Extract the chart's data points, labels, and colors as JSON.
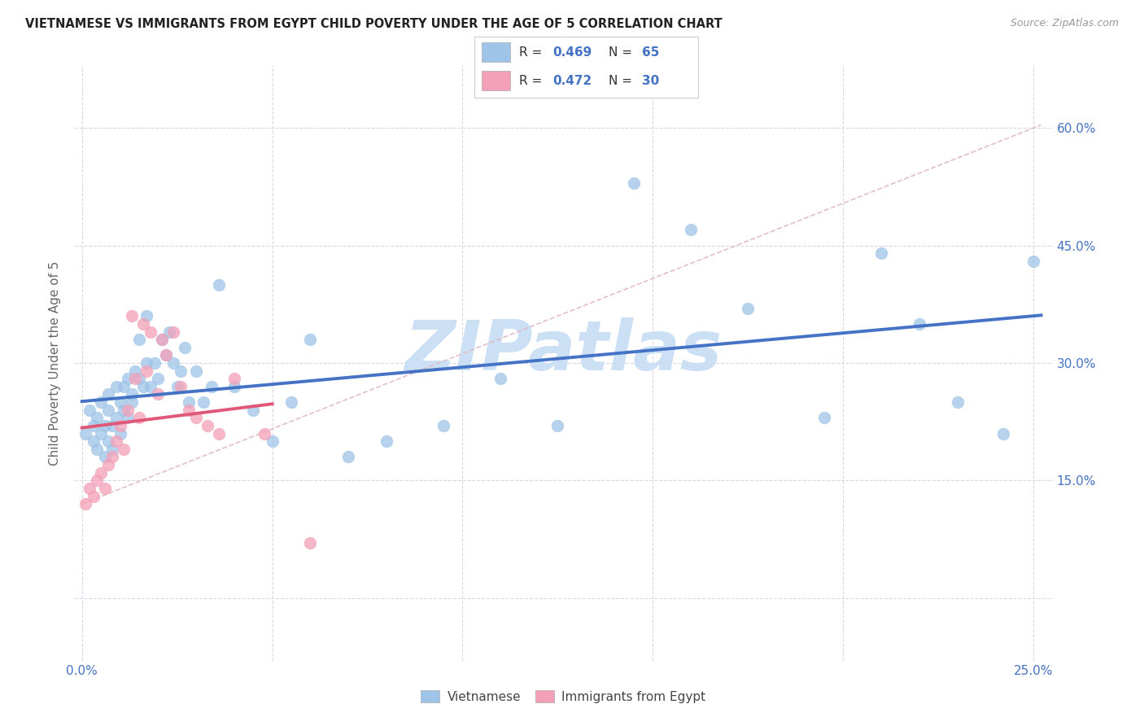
{
  "title": "VIETNAMESE VS IMMIGRANTS FROM EGYPT CHILD POVERTY UNDER THE AGE OF 5 CORRELATION CHART",
  "source": "Source: ZipAtlas.com",
  "ylabel": "Child Poverty Under the Age of 5",
  "xlim": [
    -0.002,
    0.255
  ],
  "ylim": [
    -0.08,
    0.68
  ],
  "x_ticks": [
    0.0,
    0.05,
    0.1,
    0.15,
    0.2,
    0.25
  ],
  "x_labels": [
    "0.0%",
    "",
    "",
    "",
    "",
    "25.0%"
  ],
  "y_ticks": [
    0.0,
    0.15,
    0.3,
    0.45,
    0.6
  ],
  "y_right_labels": [
    "",
    "15.0%",
    "30.0%",
    "45.0%",
    "60.0%"
  ],
  "blue_color": "#4472c4",
  "pink_line_color": "#e05878",
  "blue_dot_color": "#9ec4e8",
  "pink_dot_color": "#f4a0b8",
  "dashed_color": "#e0b8c0",
  "grid_color": "#d8d8e8",
  "watermark_color": "#cce0f5",
  "bottom_label_blue": "Vietnamese",
  "bottom_label_pink": "Immigrants from Egypt",
  "legend_r1": "0.469",
  "legend_n1": "65",
  "legend_r2": "0.472",
  "legend_n2": "30",
  "viet_x": [
    0.001,
    0.002,
    0.003,
    0.003,
    0.004,
    0.004,
    0.005,
    0.005,
    0.006,
    0.006,
    0.007,
    0.007,
    0.007,
    0.008,
    0.008,
    0.009,
    0.009,
    0.01,
    0.01,
    0.011,
    0.011,
    0.012,
    0.012,
    0.013,
    0.013,
    0.014,
    0.015,
    0.015,
    0.016,
    0.017,
    0.017,
    0.018,
    0.019,
    0.02,
    0.021,
    0.022,
    0.023,
    0.024,
    0.025,
    0.026,
    0.027,
    0.028,
    0.03,
    0.032,
    0.034,
    0.036,
    0.04,
    0.045,
    0.05,
    0.055,
    0.06,
    0.07,
    0.08,
    0.095,
    0.11,
    0.125,
    0.145,
    0.16,
    0.175,
    0.195,
    0.21,
    0.22,
    0.23,
    0.242,
    0.25
  ],
  "viet_y": [
    0.21,
    0.24,
    0.2,
    0.22,
    0.19,
    0.23,
    0.21,
    0.25,
    0.22,
    0.18,
    0.24,
    0.2,
    0.26,
    0.22,
    0.19,
    0.23,
    0.27,
    0.21,
    0.25,
    0.24,
    0.27,
    0.23,
    0.28,
    0.25,
    0.26,
    0.29,
    0.28,
    0.33,
    0.27,
    0.3,
    0.36,
    0.27,
    0.3,
    0.28,
    0.33,
    0.31,
    0.34,
    0.3,
    0.27,
    0.29,
    0.32,
    0.25,
    0.29,
    0.25,
    0.27,
    0.4,
    0.27,
    0.24,
    0.2,
    0.25,
    0.33,
    0.18,
    0.2,
    0.22,
    0.28,
    0.22,
    0.53,
    0.47,
    0.37,
    0.23,
    0.44,
    0.35,
    0.25,
    0.21,
    0.43
  ],
  "egypt_x": [
    0.001,
    0.002,
    0.003,
    0.004,
    0.005,
    0.006,
    0.007,
    0.008,
    0.009,
    0.01,
    0.011,
    0.012,
    0.013,
    0.014,
    0.015,
    0.016,
    0.017,
    0.018,
    0.02,
    0.021,
    0.022,
    0.024,
    0.026,
    0.028,
    0.03,
    0.033,
    0.036,
    0.04,
    0.048,
    0.06
  ],
  "egypt_y": [
    0.12,
    0.14,
    0.13,
    0.15,
    0.16,
    0.14,
    0.17,
    0.18,
    0.2,
    0.22,
    0.19,
    0.24,
    0.36,
    0.28,
    0.23,
    0.35,
    0.29,
    0.34,
    0.26,
    0.33,
    0.31,
    0.34,
    0.27,
    0.24,
    0.23,
    0.22,
    0.21,
    0.28,
    0.21,
    0.07
  ]
}
